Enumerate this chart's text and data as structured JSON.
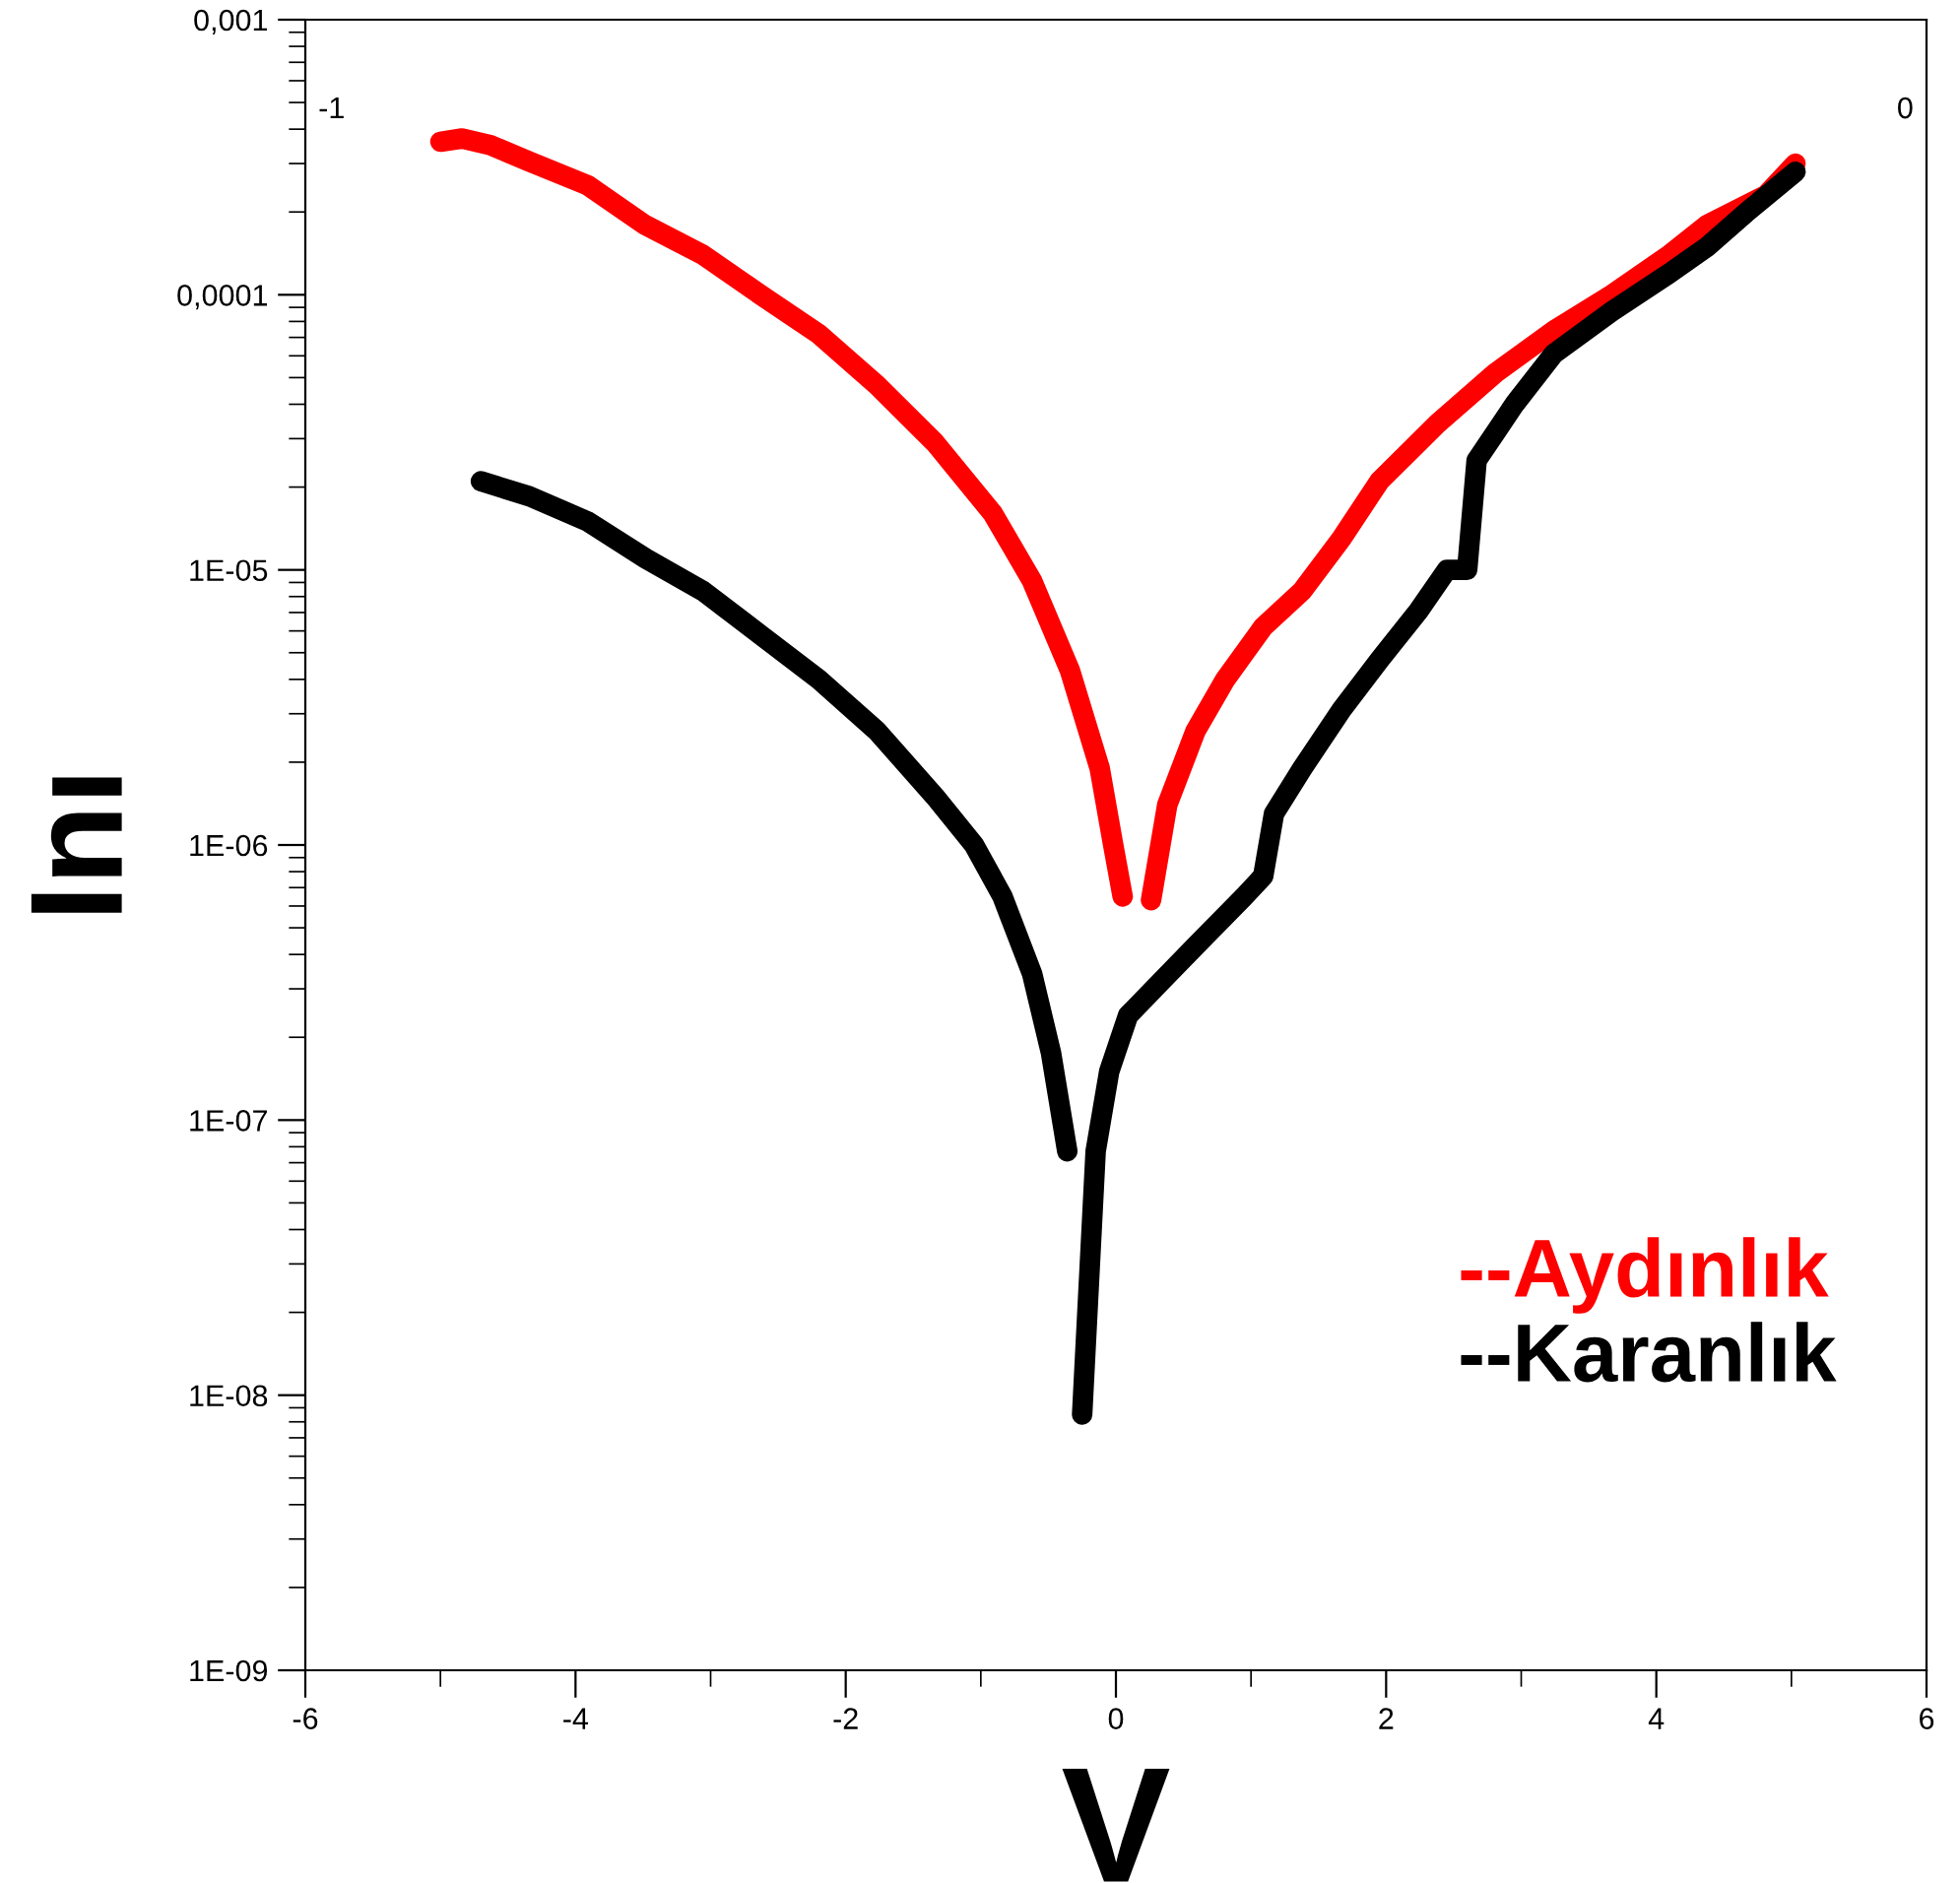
{
  "chart_data": {
    "type": "line",
    "xlabel": "V",
    "ylabel": "Inı",
    "log": "y",
    "xlim": [
      -6,
      6
    ],
    "xticks": [
      -6,
      -4,
      -2,
      0,
      2,
      4,
      6
    ],
    "ylim": [
      1e-09,
      0.001
    ],
    "yticks": [
      {
        "value": 1e-09,
        "label": "1E-09"
      },
      {
        "value": 1e-08,
        "label": "1E-08"
      },
      {
        "value": 1e-07,
        "label": "1E-07"
      },
      {
        "value": 1e-06,
        "label": "1E-06"
      },
      {
        "value": 1e-05,
        "label": "1E-05"
      },
      {
        "value": 0.0001,
        "label": "0,0001"
      },
      {
        "value": 0.001,
        "label": "0,001"
      }
    ],
    "grid": false,
    "legend": "bottom right",
    "marker": "none",
    "line_style": "solid",
    "annotations": [
      "-1",
      "0"
    ],
    "series": [
      {
        "name": "--Aydınlık",
        "color": "#ff0000",
        "x": [
          -5.0,
          -4.84,
          -4.63,
          -4.34,
          -3.91,
          -3.49,
          -3.06,
          -2.63,
          -2.2,
          -1.77,
          -1.34,
          -0.91,
          -0.62,
          -0.34,
          -0.12,
          -0.02,
          0.05,
          0.15,
          0.26,
          0.38,
          0.59,
          0.81,
          1.09,
          1.38,
          1.67,
          1.95,
          2.38,
          2.81,
          3.24,
          3.67,
          4.1,
          4.38,
          4.81,
          5.03
        ],
        "values": [
          0.00036,
          0.00037,
          0.00035,
          0.000305,
          0.00025,
          0.00018,
          0.00014,
          0.0001,
          7.2e-05,
          4.7e-05,
          2.9e-05,
          1.6e-05,
          9.1e-06,
          4.3e-06,
          1.9e-06,
          1e-06,
          6.5e-07,
          null,
          6.3e-07,
          1.4e-06,
          2.6e-06,
          4e-06,
          6.2e-06,
          8.4e-06,
          1.3e-05,
          2.1e-05,
          3.4e-05,
          5.2e-05,
          7.4e-05,
          0.0001,
          0.00014,
          0.00018,
          0.00023,
          0.0003
        ]
      },
      {
        "name": "--Karanlık",
        "color": "#000000",
        "x": [
          -4.7,
          -4.34,
          -3.91,
          -3.48,
          -3.06,
          -2.63,
          -2.2,
          -1.77,
          -1.34,
          -1.05,
          -0.84,
          -0.62,
          -0.48,
          -0.36,
          -0.3,
          -0.25,
          -0.15,
          -0.05,
          0.09,
          0.31,
          0.59,
          0.95,
          1.09,
          1.17,
          1.38,
          1.67,
          1.95,
          2.24,
          2.45,
          2.6,
          2.67,
          2.95,
          3.24,
          3.67,
          4.1,
          4.38,
          4.67,
          5.03
        ],
        "values": [
          2.1e-05,
          1.85e-05,
          1.5e-05,
          1.1e-05,
          8.4e-06,
          5.8e-06,
          4e-06,
          2.6e-06,
          1.5e-06,
          1e-06,
          6.5e-07,
          3.4e-07,
          1.75e-07,
          7.7e-08,
          null,
          8.5e-09,
          7.7e-08,
          1.5e-07,
          2.4e-07,
          3.1e-07,
          4.3e-07,
          6.5e-07,
          7.7e-07,
          1.3e-06,
          1.9e-06,
          3.1e-06,
          4.7e-06,
          7.1e-06,
          1e-05,
          1e-05,
          2.5e-05,
          4e-05,
          6.1e-05,
          8.7e-05,
          0.00012,
          0.00015,
          0.0002,
          0.00028
        ]
      }
    ]
  }
}
